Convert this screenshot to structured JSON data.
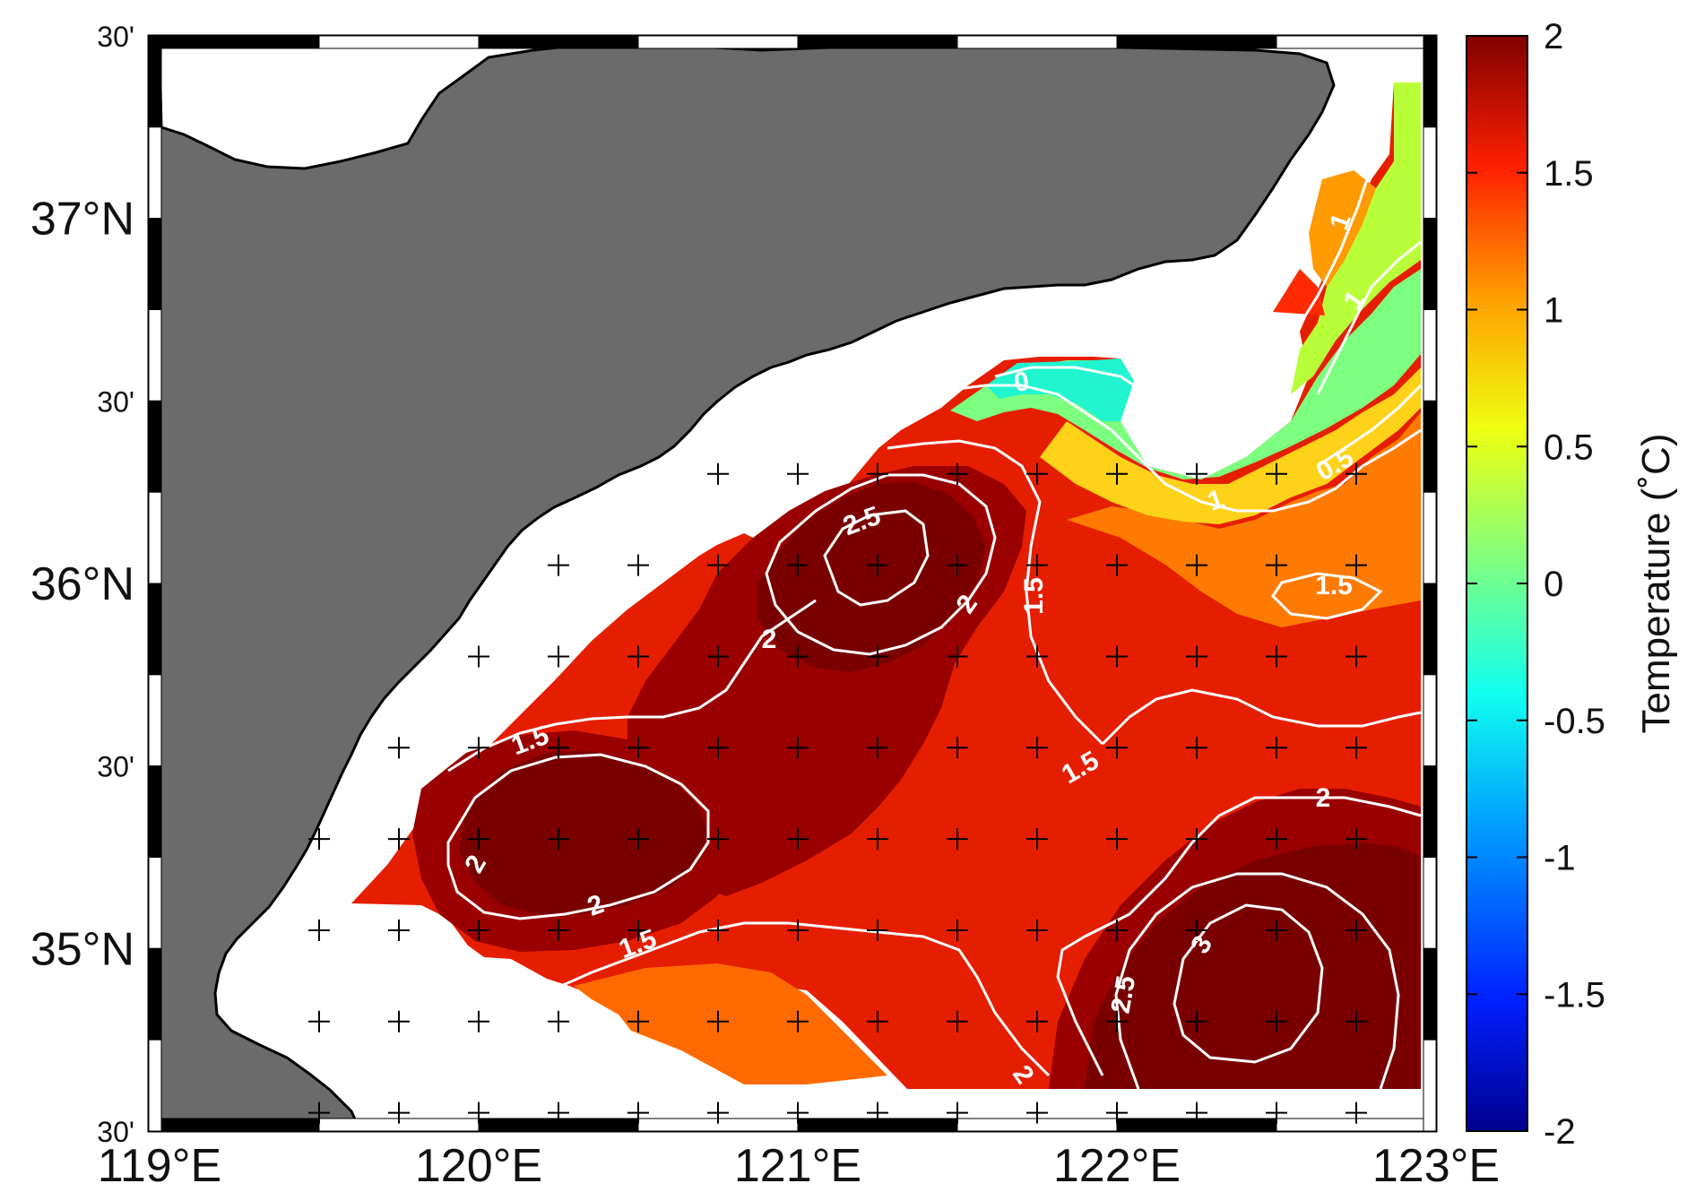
{
  "figure": {
    "colorbar": {
      "label": "Temperature (˚C)",
      "ticks": [
        "2",
        "1.5",
        "1",
        "0.5",
        "0",
        "-0.5",
        "-1",
        "-1.5",
        "-2"
      ],
      "range": [
        -2,
        2
      ],
      "colormap": [
        "#00008f",
        "#0020ff",
        "#00a0ff",
        "#10ffef",
        "#7fff80",
        "#efff10",
        "#ff9f00",
        "#ff2000",
        "#800000"
      ]
    },
    "axes": {
      "x_ticks": [
        "119°E",
        "120°E",
        "121°E",
        "122°E",
        "123°E"
      ],
      "y_ticks": [
        "35°N",
        "36°N",
        "37°N"
      ],
      "y_sub_label": "30'",
      "x_range": [
        119,
        123
      ],
      "y_range": [
        34.5,
        37.5
      ],
      "frame_style": "black-white alternating border"
    },
    "contours": {
      "labels": [
        "0",
        "0.5",
        "1",
        "1",
        "1",
        "1.5",
        "1.5",
        "1.5",
        "1.5",
        "1.5",
        "2",
        "2",
        "2",
        "2",
        "2",
        "2",
        "2.5",
        "2.5",
        "3"
      ]
    },
    "colors": {
      "land": "#6b6b6b",
      "ocean": "#ffffff",
      "contour_line": "#ffffff",
      "station_marker": "#000000"
    },
    "stations": {
      "marker": "+",
      "grid_lon_step": 0.25,
      "grid_lat_step": 0.125
    }
  }
}
